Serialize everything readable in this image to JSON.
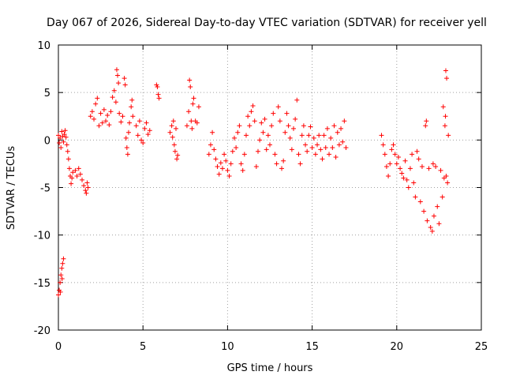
{
  "chart_data": {
    "type": "scatter",
    "title": "Day 067 of 2026, Sidereal Day-to-day VTEC variation (SDTVAR) for receiver yell",
    "xlabel": "GPS time / hours",
    "ylabel": "SDTVAR / TECUs",
    "xlim": [
      0,
      25
    ],
    "ylim": [
      -20,
      10
    ],
    "x_ticks": [
      0,
      5,
      10,
      15,
      20,
      25
    ],
    "x_tick_labels": [
      "0",
      "5",
      "10",
      "15",
      "20",
      "25"
    ],
    "y_ticks": [
      -20,
      -15,
      -10,
      -5,
      0,
      5,
      10
    ],
    "y_tick_labels": [
      "-20",
      "-15",
      "-10",
      "-5",
      "0",
      "5",
      "10"
    ],
    "grid": true,
    "marker": "+",
    "color": "#ff0000",
    "series": [
      {
        "name": "SDTVAR",
        "points": [
          [
            0.0,
            0.5
          ],
          [
            0.05,
            -0.3
          ],
          [
            0.1,
            0.2
          ],
          [
            0.15,
            -0.8
          ],
          [
            0.2,
            0.9
          ],
          [
            0.25,
            0.4
          ],
          [
            0.3,
            -0.2
          ],
          [
            0.35,
            0.6
          ],
          [
            0.4,
            1.0
          ],
          [
            0.45,
            0.3
          ],
          [
            0.0,
            -16.3
          ],
          [
            0.05,
            -15.8
          ],
          [
            0.1,
            -15.0
          ],
          [
            0.15,
            -14.2
          ],
          [
            0.2,
            -13.5
          ],
          [
            0.25,
            -13.0
          ],
          [
            0.3,
            -12.5
          ],
          [
            0.12,
            -16.0
          ],
          [
            0.22,
            -14.6
          ],
          [
            0.5,
            -0.5
          ],
          [
            0.55,
            -1.2
          ],
          [
            0.6,
            -2.0
          ],
          [
            0.65,
            -3.0
          ],
          [
            0.7,
            -3.8
          ],
          [
            0.75,
            -4.6
          ],
          [
            0.8,
            -4.0
          ],
          [
            0.85,
            -3.4
          ],
          [
            1.0,
            -3.2
          ],
          [
            1.1,
            -3.8
          ],
          [
            1.2,
            -3.0
          ],
          [
            1.3,
            -3.6
          ],
          [
            1.4,
            -4.2
          ],
          [
            1.5,
            -4.8
          ],
          [
            1.6,
            -5.3
          ],
          [
            1.65,
            -5.6
          ],
          [
            1.7,
            -4.5
          ],
          [
            1.75,
            -5.0
          ],
          [
            1.9,
            2.5
          ],
          [
            2.0,
            3.0
          ],
          [
            2.1,
            2.2
          ],
          [
            2.2,
            3.8
          ],
          [
            2.3,
            4.4
          ],
          [
            2.4,
            1.5
          ],
          [
            2.5,
            2.8
          ],
          [
            2.6,
            1.8
          ],
          [
            2.7,
            3.2
          ],
          [
            2.8,
            2.0
          ],
          [
            2.9,
            2.6
          ],
          [
            3.0,
            1.6
          ],
          [
            3.1,
            3.0
          ],
          [
            3.2,
            4.5
          ],
          [
            3.3,
            5.2
          ],
          [
            3.4,
            4.0
          ],
          [
            3.45,
            7.4
          ],
          [
            3.5,
            6.8
          ],
          [
            3.55,
            6.0
          ],
          [
            3.6,
            2.8
          ],
          [
            3.7,
            1.9
          ],
          [
            3.8,
            2.5
          ],
          [
            3.9,
            6.5
          ],
          [
            3.95,
            5.8
          ],
          [
            4.0,
            0.2
          ],
          [
            4.05,
            -0.8
          ],
          [
            4.1,
            -1.5
          ],
          [
            4.15,
            0.8
          ],
          [
            4.2,
            1.8
          ],
          [
            4.3,
            3.5
          ],
          [
            4.35,
            4.2
          ],
          [
            4.4,
            2.5
          ],
          [
            4.6,
            1.5
          ],
          [
            4.7,
            0.5
          ],
          [
            4.8,
            2.0
          ],
          [
            4.9,
            0.0
          ],
          [
            5.0,
            -0.3
          ],
          [
            5.1,
            1.2
          ],
          [
            5.2,
            1.8
          ],
          [
            5.3,
            0.6
          ],
          [
            5.4,
            1.0
          ],
          [
            5.8,
            5.8
          ],
          [
            5.85,
            5.6
          ],
          [
            5.9,
            4.8
          ],
          [
            5.95,
            4.4
          ],
          [
            6.6,
            0.8
          ],
          [
            6.7,
            1.5
          ],
          [
            6.75,
            0.3
          ],
          [
            6.8,
            2.0
          ],
          [
            6.85,
            -0.5
          ],
          [
            6.9,
            -1.2
          ],
          [
            6.95,
            1.2
          ],
          [
            7.0,
            -2.0
          ],
          [
            7.05,
            -1.6
          ],
          [
            7.6,
            1.5
          ],
          [
            7.7,
            3.0
          ],
          [
            7.75,
            6.3
          ],
          [
            7.8,
            5.6
          ],
          [
            7.85,
            2.0
          ],
          [
            7.9,
            1.2
          ],
          [
            7.95,
            3.8
          ],
          [
            8.0,
            4.4
          ],
          [
            8.1,
            2.0
          ],
          [
            8.2,
            1.8
          ],
          [
            8.3,
            3.5
          ],
          [
            8.9,
            -1.5
          ],
          [
            9.0,
            -0.5
          ],
          [
            9.1,
            0.8
          ],
          [
            9.2,
            -1.0
          ],
          [
            9.3,
            -2.0
          ],
          [
            9.4,
            -2.8
          ],
          [
            9.5,
            -3.6
          ],
          [
            9.6,
            -2.4
          ],
          [
            9.7,
            -3.0
          ],
          [
            9.8,
            -1.5
          ],
          [
            9.9,
            -2.2
          ],
          [
            10.0,
            -3.2
          ],
          [
            10.1,
            -3.8
          ],
          [
            10.2,
            -2.5
          ],
          [
            10.3,
            -1.2
          ],
          [
            10.4,
            0.2
          ],
          [
            10.5,
            -0.8
          ],
          [
            10.6,
            0.8
          ],
          [
            10.7,
            1.5
          ],
          [
            10.8,
            -2.5
          ],
          [
            10.9,
            -3.2
          ],
          [
            11.0,
            -1.5
          ],
          [
            11.1,
            0.5
          ],
          [
            11.2,
            2.5
          ],
          [
            11.3,
            1.5
          ],
          [
            11.4,
            3.0
          ],
          [
            11.5,
            3.6
          ],
          [
            11.6,
            2.0
          ],
          [
            11.7,
            -2.8
          ],
          [
            11.8,
            -1.2
          ],
          [
            11.9,
            0.0
          ],
          [
            12.0,
            1.8
          ],
          [
            12.1,
            0.8
          ],
          [
            12.2,
            2.2
          ],
          [
            12.3,
            -1.0
          ],
          [
            12.4,
            0.5
          ],
          [
            12.5,
            -0.5
          ],
          [
            12.6,
            1.5
          ],
          [
            12.7,
            2.8
          ],
          [
            12.8,
            -1.5
          ],
          [
            12.9,
            -2.5
          ],
          [
            13.0,
            3.5
          ],
          [
            13.1,
            2.0
          ],
          [
            13.2,
            -3.0
          ],
          [
            13.3,
            -2.2
          ],
          [
            13.4,
            0.8
          ],
          [
            13.5,
            2.8
          ],
          [
            13.6,
            1.5
          ],
          [
            13.7,
            0.2
          ],
          [
            13.8,
            -1.0
          ],
          [
            13.9,
            1.2
          ],
          [
            14.0,
            2.2
          ],
          [
            14.1,
            4.2
          ],
          [
            14.2,
            -1.5
          ],
          [
            14.3,
            -2.5
          ],
          [
            14.4,
            0.5
          ],
          [
            14.5,
            1.5
          ],
          [
            14.6,
            -0.5
          ],
          [
            14.7,
            -1.2
          ],
          [
            14.8,
            0.5
          ],
          [
            14.9,
            1.4
          ],
          [
            15.0,
            -0.8
          ],
          [
            15.1,
            0.2
          ],
          [
            15.2,
            -1.5
          ],
          [
            15.3,
            -0.5
          ],
          [
            15.4,
            0.5
          ],
          [
            15.5,
            -1.0
          ],
          [
            15.6,
            -2.0
          ],
          [
            15.7,
            0.5
          ],
          [
            15.8,
            -0.8
          ],
          [
            15.9,
            1.2
          ],
          [
            16.0,
            -1.5
          ],
          [
            16.1,
            0.2
          ],
          [
            16.2,
            -0.8
          ],
          [
            16.3,
            1.5
          ],
          [
            16.4,
            -1.8
          ],
          [
            16.5,
            0.8
          ],
          [
            16.6,
            -0.5
          ],
          [
            16.7,
            1.2
          ],
          [
            16.8,
            -0.2
          ],
          [
            16.9,
            2.0
          ],
          [
            17.0,
            -0.8
          ],
          [
            19.1,
            0.5
          ],
          [
            19.2,
            -0.5
          ],
          [
            19.3,
            -1.5
          ],
          [
            19.4,
            -2.8
          ],
          [
            19.5,
            -3.8
          ],
          [
            19.6,
            -2.5
          ],
          [
            19.7,
            -1.0
          ],
          [
            19.8,
            -0.5
          ],
          [
            19.9,
            -1.5
          ],
          [
            20.0,
            -2.5
          ],
          [
            20.1,
            -1.8
          ],
          [
            20.2,
            -3.0
          ],
          [
            20.3,
            -3.5
          ],
          [
            20.4,
            -4.0
          ],
          [
            20.5,
            -2.2
          ],
          [
            20.6,
            -4.2
          ],
          [
            20.7,
            -5.0
          ],
          [
            20.8,
            -3.0
          ],
          [
            20.9,
            -1.5
          ],
          [
            21.0,
            -4.5
          ],
          [
            21.1,
            -6.0
          ],
          [
            21.2,
            -1.2
          ],
          [
            21.3,
            -2.0
          ],
          [
            21.4,
            -6.5
          ],
          [
            21.5,
            -2.8
          ],
          [
            21.6,
            -7.5
          ],
          [
            21.7,
            1.5
          ],
          [
            21.75,
            2.0
          ],
          [
            21.8,
            -8.5
          ],
          [
            21.9,
            -3.0
          ],
          [
            22.0,
            -9.2
          ],
          [
            22.1,
            -9.6
          ],
          [
            22.15,
            -2.5
          ],
          [
            22.2,
            -8.0
          ],
          [
            22.3,
            -2.8
          ],
          [
            22.4,
            -7.0
          ],
          [
            22.5,
            -8.8
          ],
          [
            22.6,
            -3.2
          ],
          [
            22.7,
            -6.0
          ],
          [
            22.75,
            3.5
          ],
          [
            22.8,
            -4.0
          ],
          [
            22.85,
            1.5
          ],
          [
            22.9,
            7.3
          ],
          [
            22.95,
            6.5
          ],
          [
            23.0,
            -4.5
          ],
          [
            23.05,
            0.5
          ],
          [
            22.88,
            2.5
          ],
          [
            22.92,
            -3.8
          ]
        ]
      }
    ]
  }
}
